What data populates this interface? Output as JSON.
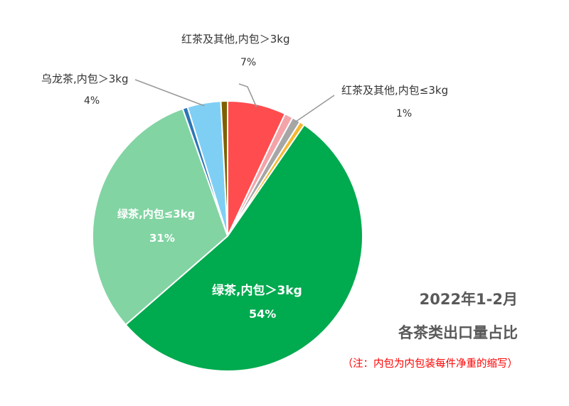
{
  "chart_data": {
    "type": "pie",
    "title_line1": "2022年1-2月",
    "title_line2": "各茶类出口量占比",
    "note": "（注：内包为内包装每件净重的缩写）",
    "slices": [
      {
        "label": "红茶及其他,内包＞3kg",
        "display": "7%",
        "value": 7.0,
        "color": "#ff4d4f",
        "label_inside": false
      },
      {
        "label": "",
        "display": "",
        "value": 1.0,
        "color": "#f4a3a8",
        "label_inside": false
      },
      {
        "label": "红茶及其他,内包≤3kg",
        "display": "1%",
        "value": 1.0,
        "color": "#a6a6a6",
        "label_inside": false
      },
      {
        "label": "",
        "display": "",
        "value": 0.6,
        "color": "#f5b82e",
        "label_inside": false
      },
      {
        "label": "绿茶,内包＞3kg",
        "display": "54%",
        "value": 54.0,
        "color": "#00aa4f",
        "label_inside": true
      },
      {
        "label": "绿茶,内包≤3kg",
        "display": "31%",
        "value": 31.0,
        "color": "#82d4a3",
        "label_inside": true
      },
      {
        "label": "",
        "display": "",
        "value": 0.6,
        "color": "#2e75b6",
        "label_inside": false
      },
      {
        "label": "乌龙茶,内包＞3kg",
        "display": "4%",
        "value": 4.0,
        "color": "#7fcff5",
        "label_inside": false
      },
      {
        "label": "",
        "display": "",
        "value": 0.8,
        "color": "#7f6000",
        "label_inside": false
      }
    ]
  }
}
